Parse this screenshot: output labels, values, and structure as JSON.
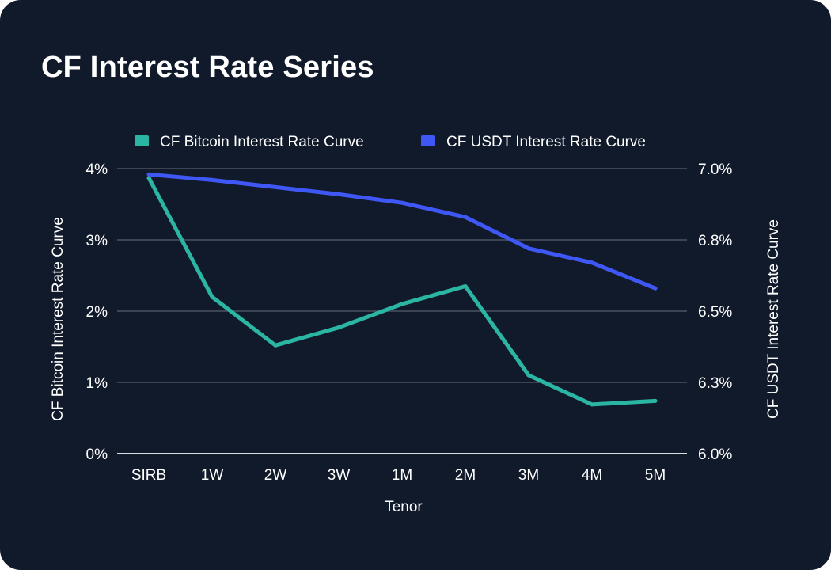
{
  "chart_data": {
    "type": "line",
    "title": "CF Interest Rate Series",
    "xlabel": "Tenor",
    "ylabel_left": "CF Bitcoin Interest Rate Curve",
    "ylabel_right": "CF USDT Interest Rate Curve",
    "categories": [
      "SIRB",
      "1W",
      "2W",
      "3W",
      "1M",
      "2M",
      "3M",
      "4M",
      "5M"
    ],
    "y_left": {
      "min": 0,
      "max": 4,
      "ticks": [
        0,
        1,
        2,
        3,
        4
      ],
      "tick_labels": [
        "0%",
        "1%",
        "2%",
        "3%",
        "4%"
      ]
    },
    "y_right": {
      "min": 6.0,
      "max": 7.0,
      "ticks": [
        6.0,
        6.25,
        6.5,
        6.75,
        7.0
      ],
      "tick_labels": [
        "6.0%",
        "6.3%",
        "6.5%",
        "6.8%",
        "7.0%"
      ]
    },
    "grid": true,
    "legend_position": "top-center",
    "series": [
      {
        "name": "CF Bitcoin Interest Rate Curve",
        "axis": "left",
        "color": "#2bb5a3",
        "values": [
          3.87,
          2.2,
          1.52,
          1.77,
          2.1,
          2.35,
          1.1,
          0.69,
          0.74
        ]
      },
      {
        "name": "CF USDT Interest Rate Curve",
        "axis": "right",
        "color": "#3f57f5",
        "values": [
          6.98,
          6.96,
          6.935,
          6.91,
          6.88,
          6.83,
          6.72,
          6.67,
          6.58
        ]
      }
    ]
  }
}
